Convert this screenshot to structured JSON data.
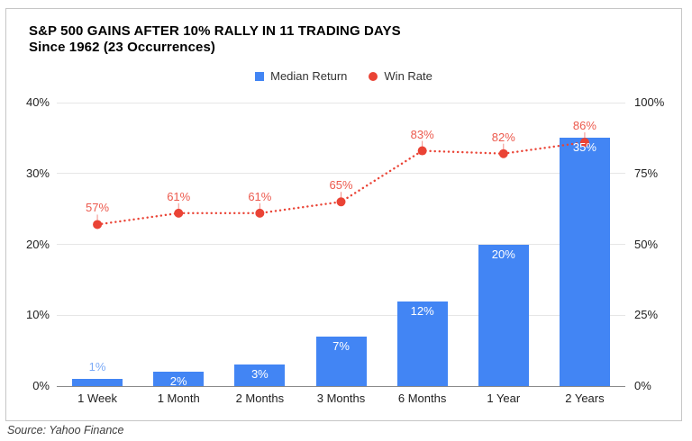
{
  "header": {
    "title_line1": "S&P 500 GAINS AFTER 10% RALLY IN 11 TRADING DAYS",
    "title_line2": "Since 1962 (23 Occurrences)"
  },
  "legend": [
    {
      "label": "Median Return",
      "marker": "square",
      "color": "#4285f4"
    },
    {
      "label": "Win Rate",
      "marker": "circle",
      "color": "#ea4335"
    }
  ],
  "source": "Source: Yahoo Finance",
  "chart_data": {
    "type": "bar",
    "subtype": "combo-bar-line-dual-axis",
    "title": "S&P 500 GAINS AFTER 10% RALLY IN 11 TRADING DAYS Since 1962 (23 Occurrences)",
    "categories": [
      "1 Week",
      "1 Month",
      "2 Months",
      "3 Months",
      "6 Months",
      "1 Year",
      "2 Years"
    ],
    "series": [
      {
        "name": "Median Return",
        "type": "bar",
        "axis": "left",
        "color": "#4285f4",
        "values": [
          1,
          2,
          3,
          7,
          12,
          20,
          35
        ],
        "labels": [
          "1%",
          "2%",
          "3%",
          "7%",
          "12%",
          "20%",
          "35%"
        ],
        "label_color_inside": "#ffffff",
        "label_color_outside": "#7baaf7"
      },
      {
        "name": "Win Rate",
        "type": "line",
        "axis": "right",
        "color": "#ea4335",
        "style": "dotted",
        "values": [
          57,
          61,
          61,
          65,
          83,
          82,
          86
        ],
        "labels": [
          "57%",
          "61%",
          "61%",
          "65%",
          "83%",
          "82%",
          "86%"
        ]
      }
    ],
    "left_axis": {
      "min": 0,
      "max": 40,
      "ticks": [
        0,
        10,
        20,
        30,
        40
      ],
      "tick_labels": [
        "0%",
        "10%",
        "20%",
        "30%",
        "40%"
      ]
    },
    "right_axis": {
      "min": 0,
      "max": 100,
      "ticks": [
        0,
        25,
        50,
        75,
        100
      ],
      "tick_labels": [
        "0%",
        "25%",
        "50%",
        "75%",
        "100%"
      ]
    },
    "grid": true,
    "legend_position": "top",
    "gridline_color": "#e6e6e6",
    "baseline_color": "#8a8a8a"
  }
}
